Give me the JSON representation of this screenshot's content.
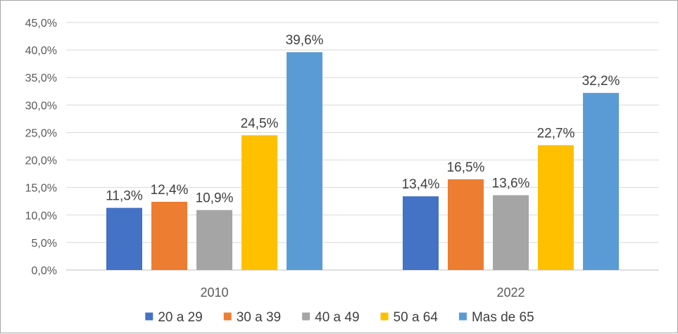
{
  "chart_data": {
    "type": "bar",
    "title": "",
    "xlabel": "",
    "ylabel": "",
    "categories": [
      "2010",
      "2022"
    ],
    "series": [
      {
        "name": "20 a 29",
        "values": [
          11.3,
          13.4
        ],
        "labels": [
          "11,3%",
          "13,4%"
        ],
        "color": "#4472c4"
      },
      {
        "name": "30 a 39",
        "values": [
          12.4,
          16.5
        ],
        "labels": [
          "12,4%",
          "16,5%"
        ],
        "color": "#ed7d31"
      },
      {
        "name": "40 a 49",
        "values": [
          10.9,
          13.6
        ],
        "labels": [
          "10,9%",
          "13,6%"
        ],
        "color": "#a5a5a5"
      },
      {
        "name": "50 a 64",
        "values": [
          24.5,
          22.7
        ],
        "labels": [
          "24,5%",
          "22,7%"
        ],
        "color": "#ffc000"
      },
      {
        "name": "Mas de 65",
        "values": [
          39.6,
          32.2
        ],
        "labels": [
          "39,6%",
          "32,2%"
        ],
        "color": "#5b9bd5"
      }
    ],
    "ylim": [
      0,
      45
    ],
    "y_ticks": [
      0,
      5,
      10,
      15,
      20,
      25,
      30,
      35,
      40,
      45
    ],
    "y_tick_labels": [
      "0,0%",
      "5,0%",
      "10,0%",
      "15,0%",
      "20,0%",
      "25,0%",
      "30,0%",
      "35,0%",
      "40,0%",
      "45,0%"
    ],
    "grid": true,
    "legend_position": "bottom",
    "gridline_color": "#d9d9d9"
  }
}
